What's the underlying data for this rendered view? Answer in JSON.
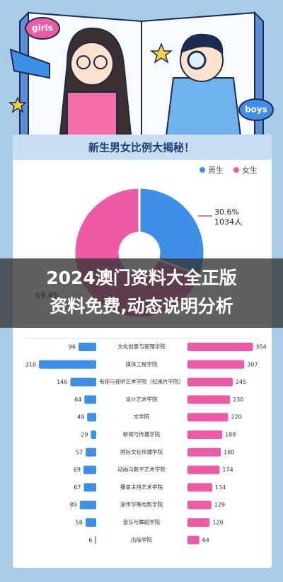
{
  "header": {
    "girls_label": "girls",
    "boys_label": "boys"
  },
  "overlay_title": [
    "2024澳门资料大全正版",
    "资料免费,动态说明分析"
  ],
  "chart_data": [
    {
      "type": "pie",
      "title": "新生男女比例大揭秘！",
      "donut": true,
      "categories": [
        "男生",
        "女生"
      ],
      "values": [
        30.6,
        69.4
      ],
      "value_labels": [
        "30.6%",
        "69.4%"
      ],
      "annotations": [
        "1034人"
      ],
      "colors": [
        "#3d8fe8",
        "#ef5aa5"
      ],
      "legend": "top-right"
    },
    {
      "type": "bar",
      "orientation": "butterfly",
      "categories": [
        "文化创意与管理学院",
        "媒体工程学院",
        "电视与视听艺术学院（纪录片学院）",
        "设计艺术学院",
        "文学院",
        "新闻与传播学院",
        "国际文化传播学院",
        "动画与数字艺术学院",
        "播音主持艺术学院",
        "浙传华策电影学院",
        "音乐与舞蹈学院",
        "出版学院"
      ],
      "series": [
        {
          "color": "#3d8fe8",
          "values": [
            96,
            310,
            140,
            64,
            49,
            29,
            57,
            69,
            67,
            89,
            58,
            6
          ]
        },
        {
          "color": "#ef5aa5",
          "values": [
            354,
            307,
            245,
            230,
            220,
            188,
            180,
            174,
            134,
            129,
            120,
            64
          ]
        }
      ],
      "xlim": [
        0,
        360
      ]
    }
  ]
}
